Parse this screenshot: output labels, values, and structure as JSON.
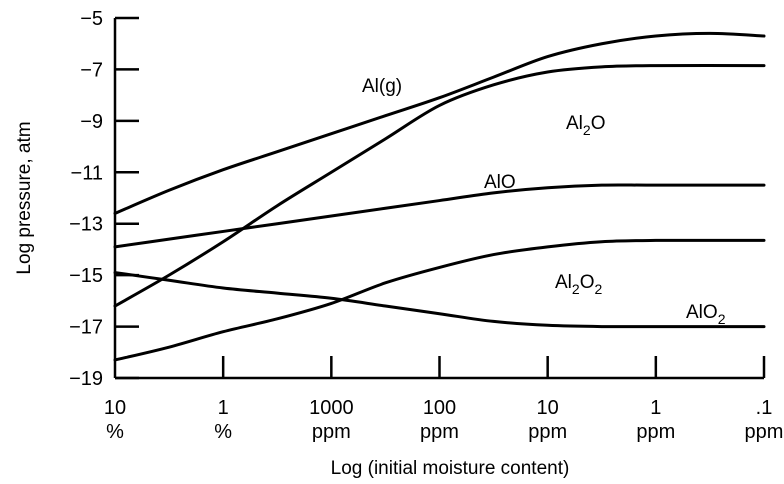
{
  "chart_data": {
    "type": "line",
    "xlabel": "Log (initial moisture content)",
    "ylabel": "Log pressure, atm",
    "ylim": [
      -19,
      -5
    ],
    "xlim": [
      0,
      6
    ],
    "yticks": [
      -5,
      -7,
      -9,
      -11,
      -13,
      -15,
      -17,
      -19
    ],
    "xticks": [
      {
        "value": 0,
        "line1": "10",
        "line2": "%"
      },
      {
        "value": 1,
        "line1": "1",
        "line2": "%"
      },
      {
        "value": 2,
        "line1": "1000",
        "line2": "ppm"
      },
      {
        "value": 3,
        "line1": "100",
        "line2": "ppm"
      },
      {
        "value": 4,
        "line1": "10",
        "line2": "ppm"
      },
      {
        "value": 5,
        "line1": "1",
        "line2": "ppm"
      },
      {
        "value": 6,
        "line1": ".1",
        "line2": "ppm"
      }
    ],
    "grid": false,
    "series": [
      {
        "name": "Al(g)",
        "label": {
          "base": "Al(g)",
          "subscripts": []
        },
        "points": [
          [
            0,
            -12.6
          ],
          [
            0.5,
            -11.7
          ],
          [
            1,
            -10.9
          ],
          [
            1.5,
            -10.2
          ],
          [
            2,
            -9.5
          ],
          [
            2.5,
            -8.8
          ],
          [
            3,
            -8.1
          ],
          [
            3.5,
            -7.3
          ],
          [
            4,
            -6.5
          ],
          [
            4.5,
            -6.0
          ],
          [
            5,
            -5.7
          ],
          [
            5.5,
            -5.6
          ],
          [
            6,
            -5.7
          ]
        ]
      },
      {
        "name": "Al2O",
        "label": {
          "base": "Al",
          "subscripts": [
            "2"
          ],
          "suffix": "O"
        },
        "points": [
          [
            0,
            -16.2
          ],
          [
            0.5,
            -15.0
          ],
          [
            1,
            -13.7
          ],
          [
            1.5,
            -12.3
          ],
          [
            2,
            -11.0
          ],
          [
            2.5,
            -9.7
          ],
          [
            3,
            -8.4
          ],
          [
            3.5,
            -7.6
          ],
          [
            4,
            -7.1
          ],
          [
            4.5,
            -6.9
          ],
          [
            5,
            -6.85
          ],
          [
            6,
            -6.85
          ]
        ]
      },
      {
        "name": "AlO",
        "label": {
          "base": "AlO",
          "subscripts": []
        },
        "points": [
          [
            0,
            -13.9
          ],
          [
            0.5,
            -13.6
          ],
          [
            1,
            -13.3
          ],
          [
            1.5,
            -13.0
          ],
          [
            2,
            -12.7
          ],
          [
            2.5,
            -12.4
          ],
          [
            3,
            -12.1
          ],
          [
            3.5,
            -11.8
          ],
          [
            4,
            -11.6
          ],
          [
            4.5,
            -11.5
          ],
          [
            5,
            -11.5
          ],
          [
            6,
            -11.5
          ]
        ]
      },
      {
        "name": "Al2O2",
        "label": {
          "base": "Al",
          "subscripts": [
            "2",
            "2"
          ],
          "suffix": "O"
        },
        "points": [
          [
            0,
            -18.3
          ],
          [
            0.5,
            -17.8
          ],
          [
            1,
            -17.2
          ],
          [
            1.5,
            -16.7
          ],
          [
            2,
            -16.1
          ],
          [
            2.5,
            -15.3
          ],
          [
            3,
            -14.7
          ],
          [
            3.5,
            -14.2
          ],
          [
            4,
            -13.9
          ],
          [
            4.5,
            -13.7
          ],
          [
            5,
            -13.65
          ],
          [
            6,
            -13.65
          ]
        ]
      },
      {
        "name": "AlO2",
        "label": {
          "base": "AlO",
          "subscripts": [
            "2"
          ]
        },
        "points": [
          [
            0,
            -14.9
          ],
          [
            0.5,
            -15.2
          ],
          [
            1,
            -15.5
          ],
          [
            1.5,
            -15.7
          ],
          [
            2,
            -15.9
          ],
          [
            2.5,
            -16.2
          ],
          [
            3,
            -16.5
          ],
          [
            3.5,
            -16.8
          ],
          [
            4,
            -16.95
          ],
          [
            4.5,
            -17.0
          ],
          [
            5,
            -17.0
          ],
          [
            6,
            -17.0
          ]
        ]
      }
    ]
  }
}
